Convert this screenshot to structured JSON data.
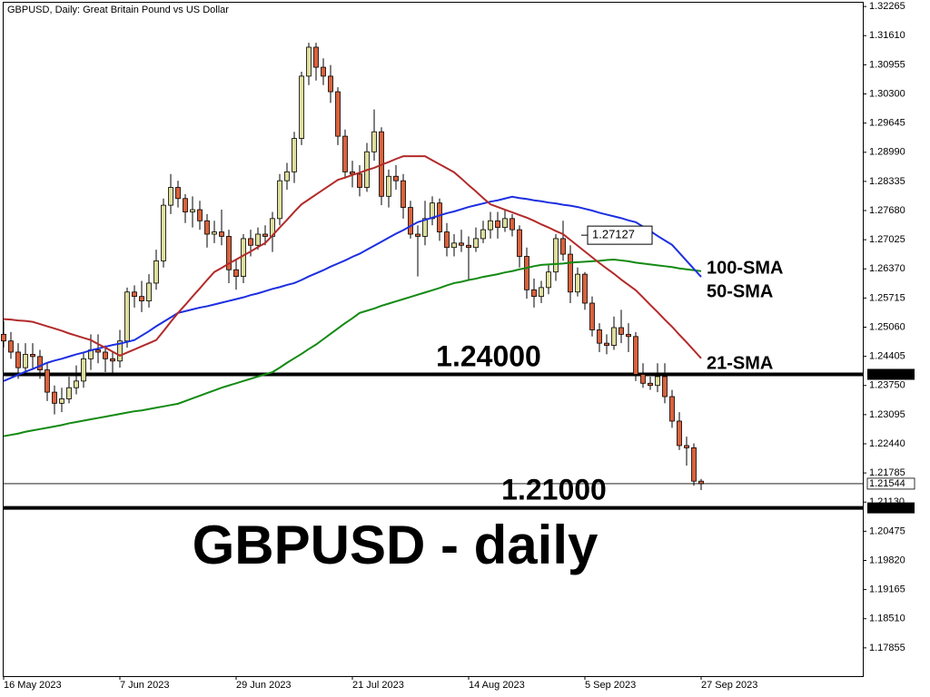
{
  "chart_data": {
    "type": "candlestick",
    "title": "GBPUSD, Daily:  Great Britain Pound vs US Dollar",
    "headline": "GBPUSD - daily",
    "categories": [
      "16 May 2023",
      null,
      null,
      null,
      null,
      null,
      null,
      null,
      null,
      null,
      null,
      null,
      null,
      null,
      null,
      null,
      "7 Jun 2023",
      null,
      null,
      null,
      null,
      null,
      null,
      null,
      null,
      null,
      null,
      null,
      null,
      null,
      null,
      null,
      "29 Jun 2023",
      null,
      null,
      null,
      null,
      null,
      null,
      null,
      null,
      null,
      null,
      null,
      null,
      null,
      null,
      null,
      "21 Jul 2023",
      null,
      null,
      null,
      null,
      null,
      null,
      null,
      null,
      null,
      null,
      null,
      null,
      null,
      null,
      null,
      "14 Aug 2023",
      null,
      null,
      null,
      null,
      null,
      null,
      null,
      null,
      null,
      null,
      null,
      null,
      null,
      null,
      null,
      "5 Sep 2023",
      null,
      null,
      null,
      null,
      null,
      null,
      null,
      null,
      null,
      null,
      null,
      null,
      null,
      null,
      null,
      "27 Sep 2023"
    ],
    "open": [
      1.249,
      1.2475,
      1.245,
      1.2415,
      1.2445,
      1.244,
      1.241,
      1.236,
      1.2335,
      1.2345,
      1.237,
      1.2385,
      1.2435,
      1.2455,
      1.245,
      1.2435,
      1.243,
      1.2475,
      1.2585,
      1.2575,
      1.2565,
      1.2605,
      1.2655,
      1.278,
      1.282,
      1.2795,
      1.2765,
      1.277,
      1.2745,
      1.2715,
      1.272,
      1.271,
      1.2635,
      1.262,
      1.2705,
      1.269,
      1.2715,
      1.271,
      1.275,
      1.2835,
      1.2855,
      1.293,
      1.307,
      1.3135,
      1.309,
      1.307,
      1.3035,
      1.2935,
      1.2855,
      1.285,
      1.282,
      1.29,
      1.2945,
      1.28,
      1.2845,
      1.2835,
      1.2775,
      1.2715,
      1.271,
      1.275,
      1.2785,
      1.272,
      1.2685,
      1.2695,
      1.269,
      1.2685,
      1.2705,
      1.2725,
      1.2745,
      1.273,
      1.275,
      1.2725,
      1.2665,
      1.259,
      1.2575,
      1.2595,
      1.263,
      1.2705,
      1.267,
      1.2585,
      1.2625,
      1.256,
      1.25,
      1.247,
      1.2465,
      1.2505,
      1.249,
      1.2485,
      1.24,
      1.238,
      1.2375,
      1.2395,
      1.235,
      1.2295,
      1.224,
      1.2235,
      1.216
    ],
    "high": [
      1.252,
      1.2495,
      1.247,
      1.247,
      1.247,
      1.2455,
      1.2425,
      1.2375,
      1.237,
      1.2395,
      1.242,
      1.245,
      1.249,
      1.249,
      1.2465,
      1.245,
      1.25,
      1.2595,
      1.26,
      1.261,
      1.2625,
      1.268,
      1.2795,
      1.285,
      1.2835,
      1.2805,
      1.28,
      1.279,
      1.276,
      1.2745,
      1.277,
      1.2725,
      1.266,
      1.2715,
      1.2725,
      1.273,
      1.2735,
      1.2765,
      1.285,
      1.2875,
      1.2945,
      1.308,
      1.3145,
      1.3145,
      1.311,
      1.3095,
      1.3045,
      1.295,
      1.288,
      1.287,
      1.292,
      1.2995,
      1.2955,
      1.286,
      1.287,
      1.285,
      1.279,
      1.2735,
      1.279,
      1.28,
      1.2795,
      1.274,
      1.2715,
      1.2725,
      1.271,
      1.273,
      1.2745,
      1.2765,
      1.2765,
      1.277,
      1.276,
      1.2735,
      1.2685,
      1.2615,
      1.261,
      1.2645,
      1.2715,
      1.2745,
      1.269,
      1.264,
      1.263,
      1.2575,
      1.2515,
      1.249,
      1.253,
      1.2545,
      1.2515,
      1.2495,
      1.2425,
      1.2395,
      1.2425,
      1.2425,
      1.2365,
      1.2315,
      1.226,
      1.2245,
      1.2165
    ],
    "low": [
      1.246,
      1.2435,
      1.239,
      1.24,
      1.241,
      1.239,
      1.234,
      1.231,
      1.2315,
      1.2335,
      1.2355,
      1.237,
      1.241,
      1.2425,
      1.2405,
      1.24,
      1.2415,
      1.246,
      1.255,
      1.254,
      1.255,
      1.259,
      1.264,
      1.276,
      1.2775,
      1.274,
      1.273,
      1.2725,
      1.2685,
      1.2695,
      1.269,
      1.2605,
      1.259,
      1.2605,
      1.2665,
      1.268,
      1.269,
      1.2675,
      1.2735,
      1.2815,
      1.283,
      1.2915,
      1.305,
      1.306,
      1.305,
      1.301,
      1.2915,
      1.284,
      1.282,
      1.28,
      1.281,
      1.288,
      1.278,
      1.2775,
      1.2815,
      1.275,
      1.2705,
      1.262,
      1.269,
      1.2735,
      1.27,
      1.2665,
      1.2665,
      1.2675,
      1.261,
      1.2675,
      1.2695,
      1.2705,
      1.2705,
      1.272,
      1.271,
      1.264,
      1.257,
      1.255,
      1.256,
      1.258,
      1.261,
      1.2655,
      1.256,
      1.2575,
      1.2545,
      1.2485,
      1.245,
      1.2445,
      1.2455,
      1.247,
      1.245,
      1.2385,
      1.237,
      1.2365,
      1.236,
      1.2335,
      1.228,
      1.223,
      1.2195,
      1.215,
      1.214
    ],
    "close": [
      1.2475,
      1.245,
      1.2415,
      1.2445,
      1.244,
      1.241,
      1.236,
      1.2335,
      1.2345,
      1.237,
      1.2385,
      1.2435,
      1.2455,
      1.245,
      1.2435,
      1.243,
      1.2475,
      1.2585,
      1.2575,
      1.2565,
      1.2605,
      1.2655,
      1.278,
      1.282,
      1.2795,
      1.2765,
      1.277,
      1.2745,
      1.2715,
      1.272,
      1.271,
      1.2635,
      1.262,
      1.2705,
      1.269,
      1.2715,
      1.271,
      1.275,
      1.2835,
      1.2855,
      1.293,
      1.307,
      1.3135,
      1.309,
      1.307,
      1.3035,
      1.2935,
      1.2855,
      1.285,
      1.282,
      1.29,
      1.2945,
      1.28,
      1.2845,
      1.2835,
      1.2775,
      1.2715,
      1.271,
      1.275,
      1.2785,
      1.272,
      1.2685,
      1.2695,
      1.269,
      1.2685,
      1.2705,
      1.2725,
      1.2745,
      1.273,
      1.275,
      1.2725,
      1.2665,
      1.259,
      1.2575,
      1.2595,
      1.263,
      1.2705,
      1.267,
      1.2585,
      1.2625,
      1.256,
      1.25,
      1.247,
      1.2465,
      1.2505,
      1.249,
      1.2485,
      1.24,
      1.238,
      1.2375,
      1.2395,
      1.235,
      1.2295,
      1.224,
      1.2235,
      1.216,
      1.21544
    ],
    "up_color": "#dede9e",
    "down_color": "#d9623c",
    "series": [
      {
        "name": "100-SMA",
        "color": "#138a13",
        "values": [
          1.2261,
          1.2264,
          1.2267,
          1.2271,
          1.2274,
          1.2277,
          1.228,
          1.2283,
          1.2286,
          1.229,
          1.2293,
          1.2296,
          1.2299,
          1.2302,
          1.2305,
          1.2308,
          1.2311,
          1.2314,
          1.2317,
          1.2319,
          1.2322,
          1.2325,
          1.2328,
          1.2331,
          1.2334,
          1.234,
          1.2346,
          1.2352,
          1.2358,
          1.2364,
          1.237,
          1.2375,
          1.238,
          1.2385,
          1.239,
          1.2395,
          1.24,
          1.2405,
          1.2415,
          1.2426,
          1.2436,
          1.2446,
          1.2457,
          1.2467,
          1.2479,
          1.2491,
          1.2503,
          1.2515,
          1.2526,
          1.2538,
          1.2543,
          1.2548,
          1.2554,
          1.2559,
          1.2564,
          1.2569,
          1.2574,
          1.2579,
          1.2584,
          1.2589,
          1.2594,
          1.26,
          1.2605,
          1.2608,
          1.2612,
          1.2615,
          1.2619,
          1.2622,
          1.2625,
          1.2629,
          1.2632,
          1.2636,
          1.2639,
          1.2643,
          1.2646,
          1.2647,
          1.2648,
          1.2649,
          1.2651,
          1.2652,
          1.2653,
          1.2654,
          1.2655,
          1.2657,
          1.2658,
          1.2656,
          1.2654,
          1.2651,
          1.2649,
          1.2647,
          1.2645,
          1.2643,
          1.2641,
          1.2638,
          1.2636,
          1.2634,
          1.2632
        ]
      },
      {
        "name": "50-SMA",
        "color": "#1c2fe0",
        "values": [
          1.2385,
          1.2392,
          1.2399,
          1.2406,
          1.2412,
          1.2419,
          1.2426,
          1.2431,
          1.2435,
          1.244,
          1.2445,
          1.2449,
          1.2454,
          1.2458,
          1.2462,
          1.2466,
          1.2469,
          1.2473,
          1.2477,
          1.2487,
          1.2497,
          1.2508,
          1.2518,
          1.2528,
          1.2538,
          1.2542,
          1.2546,
          1.255,
          1.2553,
          1.2557,
          1.2561,
          1.2565,
          1.2569,
          1.2573,
          1.2578,
          1.2582,
          1.2587,
          1.2592,
          1.2596,
          1.2601,
          1.2605,
          1.2612,
          1.262,
          1.2627,
          1.2634,
          1.2642,
          1.2649,
          1.2656,
          1.2664,
          1.2671,
          1.268,
          1.2689,
          1.2698,
          1.2707,
          1.2716,
          1.2724,
          1.2733,
          1.2742,
          1.2747,
          1.2752,
          1.2757,
          1.2762,
          1.2766,
          1.2771,
          1.2776,
          1.278,
          1.2784,
          1.2788,
          1.2791,
          1.2795,
          1.2799,
          1.2796,
          1.2794,
          1.2791,
          1.2789,
          1.2786,
          1.2784,
          1.2781,
          1.2779,
          1.2776,
          1.2772,
          1.2768,
          1.2763,
          1.2759,
          1.2755,
          1.2751,
          1.2746,
          1.2742,
          1.2732,
          1.2722,
          1.2711,
          1.2701,
          1.2691,
          1.2673,
          1.2655,
          1.2637,
          1.2619
        ]
      },
      {
        "name": "21-SMA",
        "color": "#b32a2a",
        "values": [
          1.2524,
          1.2523,
          1.2521,
          1.252,
          1.2518,
          1.2513,
          1.2508,
          1.2503,
          1.2498,
          1.2492,
          1.2487,
          1.2482,
          1.2477,
          1.2468,
          1.246,
          1.2451,
          1.2442,
          1.2449,
          1.2456,
          1.2463,
          1.247,
          1.2477,
          1.2497,
          1.2518,
          1.2538,
          1.2556,
          1.2575,
          1.2593,
          1.2612,
          1.263,
          1.2639,
          1.2649,
          1.2658,
          1.2667,
          1.2676,
          1.2686,
          1.2695,
          1.2712,
          1.273,
          1.2747,
          1.2765,
          1.2782,
          1.2793,
          1.2804,
          1.2815,
          1.2826,
          1.2837,
          1.2842,
          1.2848,
          1.2853,
          1.2859,
          1.2864,
          1.2871,
          1.2877,
          1.2884,
          1.289,
          1.289,
          1.289,
          1.289,
          1.2881,
          1.2872,
          1.2863,
          1.2854,
          1.284,
          1.2825,
          1.2811,
          1.2796,
          1.2782,
          1.2776,
          1.277,
          1.2764,
          1.2758,
          1.2752,
          1.2745,
          1.2737,
          1.273,
          1.2722,
          1.2715,
          1.2702,
          1.2689,
          1.2676,
          1.2663,
          1.265,
          1.2638,
          1.2626,
          1.2613,
          1.2601,
          1.2589,
          1.2573,
          1.2556,
          1.254,
          1.2523,
          1.2507,
          1.2489,
          1.2472,
          1.2454,
          1.2436
        ]
      }
    ],
    "hlines": [
      {
        "value": 1.24,
        "label": "1.24000"
      },
      {
        "value": 1.21,
        "label": "1.21000"
      }
    ],
    "marker_label": 1.27127,
    "ylim": [
      1.1722,
      1.3237
    ],
    "yticks": [
      1.32265,
      {
        "value": 1.3161,
        "label": "1.31610"
      },
      1.30955,
      {
        "value": 1.303,
        "label": "1.30300"
      },
      1.29645,
      {
        "value": 1.2899,
        "label": "1.28990"
      },
      1.28335,
      {
        "value": 1.2768,
        "label": "1.27680"
      },
      1.27025,
      {
        "value": 1.2637,
        "label": "1.26370"
      },
      1.25715,
      {
        "value": 1.2506,
        "label": "1.25060"
      },
      1.24405,
      {
        "value": 1.2375,
        "label": "1.23750"
      },
      1.23095,
      {
        "value": 1.2244,
        "label": "1.22440"
      },
      1.21785,
      {
        "value": 1.2113,
        "label": "1.21130"
      },
      1.20475,
      {
        "value": 1.1982,
        "label": "1.19820"
      },
      1.19165,
      {
        "value": 1.1851,
        "label": "1.18510"
      },
      1.17855
    ]
  }
}
